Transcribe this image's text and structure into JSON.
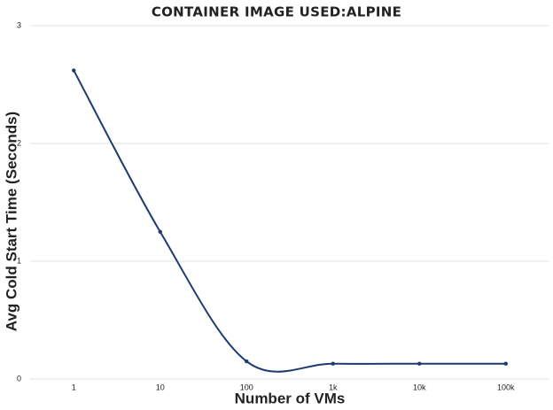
{
  "chart_data": {
    "type": "line",
    "title": "CONTAINER IMAGE USED:ALPINE",
    "x_label": "Number of VMs",
    "y_label": "Avg Cold Start Time (Seconds)",
    "categories": [
      "1",
      "10",
      "100",
      "1k",
      "10k",
      "100k"
    ],
    "series": [
      {
        "name": "Avg Cold Start Time",
        "color": "#1f3a6e",
        "values": [
          2.62,
          1.25,
          0.15,
          0.13,
          0.13,
          0.13
        ]
      }
    ],
    "ylim": [
      0,
      3
    ],
    "yticks": [
      0,
      1,
      2,
      3
    ],
    "grid": true
  }
}
